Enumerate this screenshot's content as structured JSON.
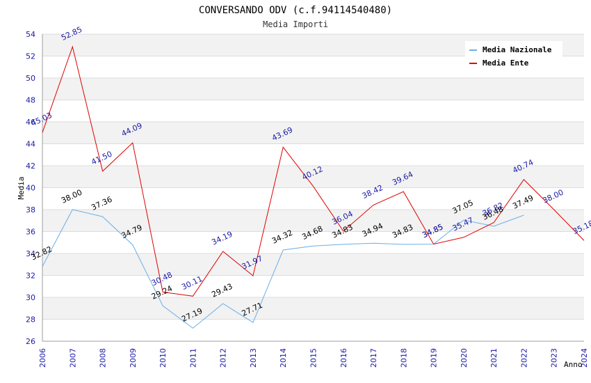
{
  "chart_data": {
    "type": "line",
    "title": "CONVERSANDO ODV (c.f.94114540480)",
    "subtitle": "Media Importi",
    "xlabel": "Anno",
    "ylabel": "Media",
    "ylim": [
      26,
      54
    ],
    "yticks": [
      "26",
      "28",
      "30",
      "32",
      "34",
      "36",
      "38",
      "40",
      "42",
      "44",
      "46",
      "48",
      "50",
      "52",
      "54"
    ],
    "x": [
      "2006",
      "2007",
      "2008",
      "2009",
      "2010",
      "2011",
      "2012",
      "2013",
      "2014",
      "2015",
      "2016",
      "2017",
      "2018",
      "2019",
      "2020",
      "2021",
      "2022",
      "2023",
      "2024"
    ],
    "legend_position": "top-right",
    "series": [
      {
        "name": "Media Nazionale",
        "color": "#6aaee8",
        "label_color": "#000000",
        "values": [
          32.82,
          38.0,
          37.36,
          34.79,
          29.24,
          27.19,
          29.43,
          27.71,
          34.32,
          34.68,
          34.83,
          34.94,
          34.83,
          34.85,
          37.05,
          36.48,
          37.49,
          null,
          null
        ],
        "labels": [
          "32.82",
          "38.00",
          "37.36",
          "34.79",
          "29.24",
          "27.19",
          "29.43",
          "27.71",
          "34.32",
          "34.68",
          "34.83",
          "34.94",
          "34.83",
          "34.85",
          "37.05",
          "36.48",
          "37.49",
          "",
          ""
        ]
      },
      {
        "name": "Media Ente",
        "color": "#e00000",
        "label_color": "#1a1aa6",
        "values": [
          45.03,
          52.85,
          41.5,
          44.09,
          30.48,
          30.11,
          34.19,
          31.97,
          43.69,
          40.12,
          36.04,
          38.42,
          39.64,
          34.85,
          35.47,
          36.82,
          40.74,
          38.0,
          35.18
        ],
        "labels": [
          "45.03",
          "52.85",
          "41.50",
          "44.09",
          "30.48",
          "30.11",
          "34.19",
          "31.97",
          "43.69",
          "40.12",
          "36.04",
          "38.42",
          "39.64",
          "34.85",
          "35.47",
          "36.82",
          "40.74",
          "38.00",
          "35.18"
        ]
      }
    ]
  }
}
